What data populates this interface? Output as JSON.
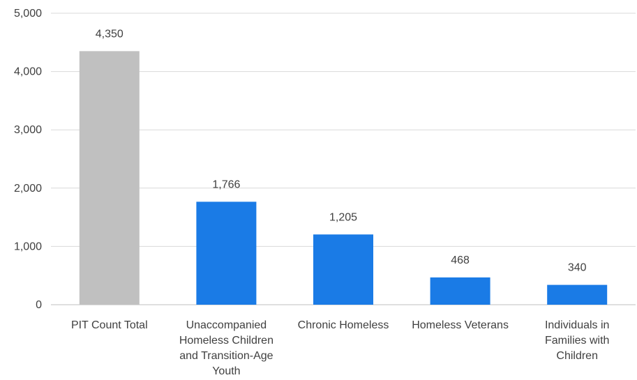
{
  "chart_data": {
    "type": "bar",
    "title": "",
    "xlabel": "",
    "ylabel": "",
    "ylim": [
      0,
      5000
    ],
    "yticks": [
      0,
      1000,
      2000,
      3000,
      4000,
      5000
    ],
    "ytick_labels": [
      "0",
      "1,000",
      "2,000",
      "3,000",
      "4,000",
      "5,000"
    ],
    "grid": true,
    "legend": "none",
    "categories": [
      "PIT Count Total",
      "Unaccompanied Homeless Children and Transition-Age Youth",
      "Chronic Homeless",
      "Homeless Veterans",
      "Individuals in Families with Children"
    ],
    "category_label_lines": [
      [
        "PIT Count Total"
      ],
      [
        "Unaccompanied",
        "Homeless Children",
        "and Transition-Age",
        "Youth"
      ],
      [
        "Chronic Homeless"
      ],
      [
        "Homeless Veterans"
      ],
      [
        "Individuals in",
        "Families with",
        "Children"
      ]
    ],
    "values": [
      4350,
      1766,
      1205,
      468,
      340
    ],
    "data_labels": [
      "4,350",
      "1,766",
      "1,205",
      "468",
      "340"
    ],
    "colors": [
      "#c0c0c0",
      "#1a7be6",
      "#1a7be6",
      "#1a7be6",
      "#1a7be6"
    ]
  }
}
